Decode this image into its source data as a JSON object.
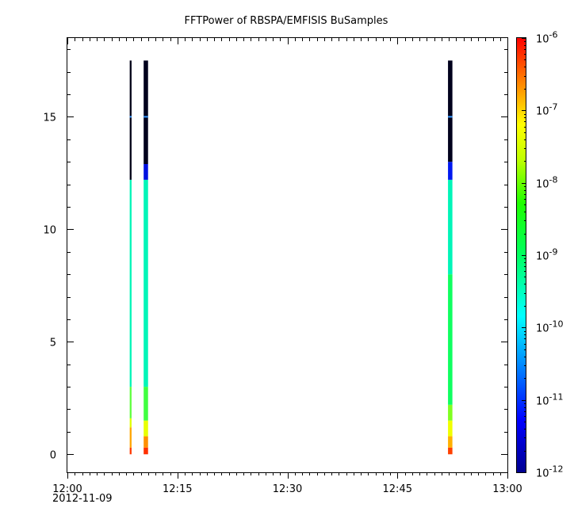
{
  "chart_data": {
    "type": "heatmap",
    "title": "FFTPower of RBSPA/EMFISIS  BuSamples",
    "xlabel": "",
    "ylabel": "",
    "x": {
      "start_minutes": 0,
      "end_minutes": 60,
      "tick_labels": [
        "12:00",
        "12:15",
        "12:30",
        "12:45",
        "13:00"
      ],
      "tick_minutes": [
        0,
        15,
        30,
        45,
        60
      ],
      "date_label": "2012-11-09"
    },
    "y": {
      "ylim": [
        -0.8,
        18.5
      ],
      "tick_values": [
        0,
        5,
        10,
        15
      ],
      "tick_labels": [
        "0",
        "5",
        "10",
        "15"
      ]
    },
    "colorbar": {
      "scale": "log",
      "range": [
        1e-12,
        1e-06
      ],
      "tick_exponents": [
        -12,
        -11,
        -10,
        -9,
        -8,
        -7,
        -6
      ]
    },
    "grid": false,
    "columns": [
      {
        "t_minutes": 8.5,
        "width_minutes": 0.25,
        "bands": [
          {
            "y0": 0.0,
            "y1": 0.3,
            "color": "#ff3a00"
          },
          {
            "y0": 0.3,
            "y1": 1.2,
            "color": "#ffa600"
          },
          {
            "y0": 1.2,
            "y1": 1.6,
            "color": "#e0ff00"
          },
          {
            "y0": 1.6,
            "y1": 3.0,
            "color": "#60ff40"
          },
          {
            "y0": 3.0,
            "y1": 12.2,
            "color": "#00f5b8"
          },
          {
            "y0": 12.2,
            "y1": 17.5,
            "color": "#000018"
          }
        ],
        "lines": [
          {
            "y": 15.0,
            "color": "#3399ff"
          }
        ]
      },
      {
        "t_minutes": 10.4,
        "width_minutes": 0.6,
        "bands": [
          {
            "y0": 0.0,
            "y1": 0.3,
            "color": "#ff3000"
          },
          {
            "y0": 0.3,
            "y1": 0.8,
            "color": "#ff9000"
          },
          {
            "y0": 0.8,
            "y1": 1.5,
            "color": "#e8ff00"
          },
          {
            "y0": 1.5,
            "y1": 3.0,
            "color": "#40ff40"
          },
          {
            "y0": 3.0,
            "y1": 12.2,
            "color": "#00f5b8"
          },
          {
            "y0": 12.2,
            "y1": 12.9,
            "color": "#0010e0"
          },
          {
            "y0": 12.9,
            "y1": 17.5,
            "color": "#00001c"
          }
        ],
        "lines": [
          {
            "y": 15.0,
            "color": "#3399ff"
          }
        ]
      },
      {
        "t_minutes": 51.9,
        "width_minutes": 0.6,
        "bands": [
          {
            "y0": 0.0,
            "y1": 0.3,
            "color": "#ff4000"
          },
          {
            "y0": 0.3,
            "y1": 0.8,
            "color": "#ffb000"
          },
          {
            "y0": 0.8,
            "y1": 1.5,
            "color": "#f0ff00"
          },
          {
            "y0": 1.5,
            "y1": 2.2,
            "color": "#80ff20"
          },
          {
            "y0": 2.2,
            "y1": 8.0,
            "color": "#10ff60"
          },
          {
            "y0": 8.0,
            "y1": 12.2,
            "color": "#00f5b8"
          },
          {
            "y0": 12.2,
            "y1": 13.0,
            "color": "#0018f0"
          },
          {
            "y0": 13.0,
            "y1": 17.5,
            "color": "#00001c"
          }
        ],
        "lines": [
          {
            "y": 15.0,
            "color": "#3399ff"
          }
        ]
      }
    ]
  }
}
